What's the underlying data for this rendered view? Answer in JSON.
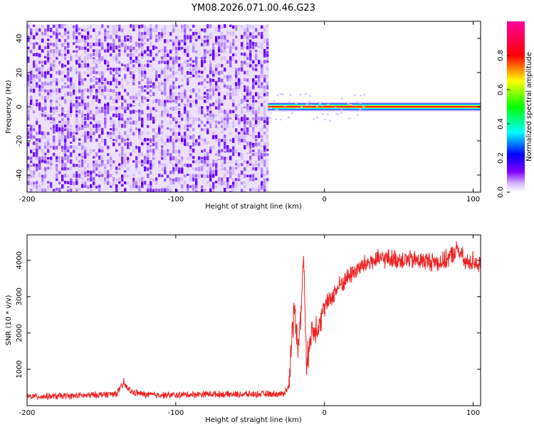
{
  "chart_data": [
    {
      "type": "heatmap",
      "title": "YM08.2026.071.00.46.G23",
      "xlabel": "Height of straight line (km)",
      "ylabel": "Frequency (Hz)",
      "xlim": [
        -200,
        105
      ],
      "ylim": [
        -50,
        50
      ],
      "x_ticks": [
        -200,
        -100,
        0,
        100
      ],
      "y_ticks": [
        -40,
        -20,
        0,
        20,
        40
      ],
      "grid": false,
      "noise_region": {
        "x": [
          -200,
          -38
        ],
        "freq": [
          -50,
          48
        ]
      },
      "signal_band": {
        "x": [
          -38,
          105
        ],
        "freq": [
          -1.5,
          1.5
        ]
      },
      "colorbar": {
        "label": "Normalized spectral amplitude",
        "range": [
          0,
          1
        ],
        "ticks": [
          0.0,
          0.2,
          0.4,
          0.6,
          0.8
        ],
        "colormap": [
          "#ffffff",
          "#8000ff",
          "#0000ff",
          "#00ffff",
          "#00ff00",
          "#ffff00",
          "#ff0000",
          "#ff00a0"
        ]
      }
    },
    {
      "type": "line",
      "xlabel": "Height of straight line (km)",
      "ylabel": "SNR (10 * v/v)",
      "xlim": [
        -200,
        105
      ],
      "ylim": [
        0,
        4700
      ],
      "x_ticks": [
        -200,
        -100,
        0,
        100
      ],
      "y_ticks": [
        1000,
        2000,
        3000,
        4000
      ],
      "grid": false,
      "series": [
        {
          "color": "#ee2222",
          "x": [
            -200,
            -180,
            -160,
            -140,
            -135,
            -130,
            -120,
            -100,
            -80,
            -60,
            -40,
            -28,
            -24,
            -22,
            -20,
            -18,
            -16,
            -14,
            -12,
            -10,
            -5,
            0,
            10,
            20,
            30,
            40,
            60,
            80,
            90,
            95,
            100,
            105
          ],
          "y": [
            250,
            260,
            280,
            330,
            600,
            380,
            300,
            290,
            320,
            310,
            320,
            320,
            500,
            1900,
            2700,
            1700,
            2400,
            4200,
            900,
            1900,
            2200,
            2700,
            3300,
            3700,
            3950,
            4050,
            4000,
            3950,
            4300,
            3900,
            4000,
            3850
          ]
        }
      ]
    }
  ]
}
